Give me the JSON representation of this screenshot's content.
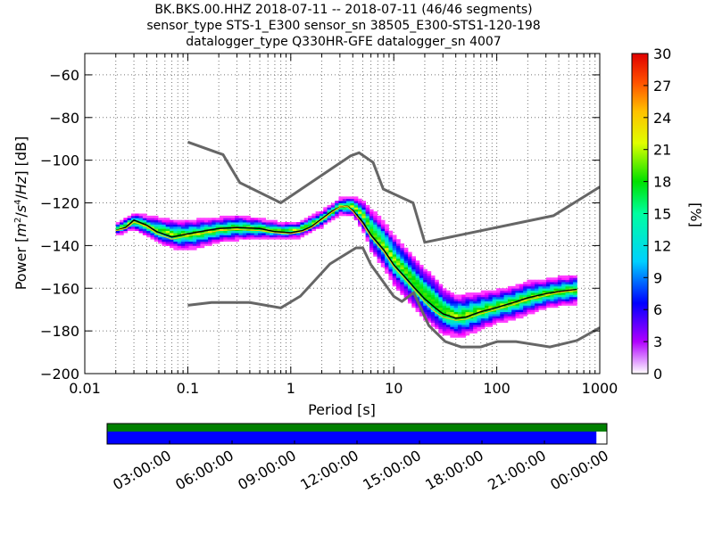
{
  "title": {
    "line1": "BK.BKS.00.HHZ   2018-07-11 -- 2018-07-11  (46/46 segments)",
    "line2": "sensor_type STS-1_E300 sensor_sn 38505_E300-STS1-120-198",
    "line3": "datalogger_type Q330HR-GFE datalogger_sn 4007"
  },
  "chart_data": {
    "type": "heatmap",
    "xlabel": "Period [s]",
    "ylabel": "Power [m²/s⁴/Hz] [dB]",
    "x_scale": "log",
    "xlim": [
      0.01,
      1000
    ],
    "ylim": [
      -200,
      -50
    ],
    "x_ticks": [
      "0.01",
      "0.1",
      "1",
      "10",
      "100",
      "1000"
    ],
    "y_ticks": [
      "−200",
      "−180",
      "−160",
      "−140",
      "−120",
      "−100",
      "−80",
      "−60"
    ],
    "grid": true,
    "colorbar": {
      "label": "[%]",
      "range": [
        0,
        30
      ],
      "ticks": [
        "0",
        "3",
        "6",
        "9",
        "12",
        "15",
        "18",
        "21",
        "24",
        "27",
        "30"
      ],
      "colormap": "pqlx"
    },
    "new_high_noise_model": {
      "period": [
        0.1,
        0.22,
        0.32,
        0.8,
        3.8,
        4.6,
        6.3,
        7.9,
        15.4,
        20,
        354.8,
        1000
      ],
      "power": [
        -91.5,
        -97.4,
        -110.5,
        -120,
        -98,
        -96.5,
        -101,
        -113.5,
        -120,
        -138.5,
        -126,
        -112.5
      ]
    },
    "new_low_noise_model": {
      "period": [
        0.1,
        0.17,
        0.4,
        0.8,
        1.24,
        2.4,
        4.3,
        5,
        6,
        10,
        12,
        15.6,
        21.9,
        31.6,
        45,
        70,
        101,
        154,
        328,
        600,
        1000
      ],
      "power": [
        -168,
        -166.7,
        -166.7,
        -169.2,
        -163.7,
        -148.6,
        -141.1,
        -141.1,
        -149,
        -163.8,
        -166.2,
        -162.1,
        -177.5,
        -185,
        -187.5,
        -187.5,
        -185,
        -185,
        -187.5,
        -184.5,
        -178.5
      ]
    },
    "mean_psd": {
      "period": [
        0.02,
        0.025,
        0.03,
        0.04,
        0.05,
        0.07,
        0.1,
        0.15,
        0.2,
        0.3,
        0.5,
        0.7,
        1,
        1.3,
        1.6,
        2,
        2.5,
        3,
        3.5,
        4,
        5,
        6,
        8,
        10,
        13,
        16,
        20,
        25,
        30,
        40,
        50,
        70,
        100,
        150,
        200,
        300,
        400,
        600
      ],
      "power": [
        -133,
        -131.5,
        -128,
        -130.5,
        -133.5,
        -136,
        -134.5,
        -133,
        -132,
        -131.5,
        -132,
        -133.5,
        -134,
        -133,
        -131,
        -127.5,
        -124,
        -122,
        -121.5,
        -123.5,
        -129,
        -135,
        -142,
        -149,
        -155,
        -160,
        -165,
        -169,
        -172,
        -174,
        -173.5,
        -171,
        -169,
        -166.5,
        -164.5,
        -162.5,
        -161.5,
        -160.5
      ]
    },
    "mode_psd": {
      "period": [
        0.02,
        0.025,
        0.03,
        0.04,
        0.05,
        0.07,
        0.1,
        0.15,
        0.2,
        0.3,
        0.5,
        0.7,
        1,
        1.3,
        1.6,
        2,
        2.5,
        3,
        3.5,
        4,
        5,
        6,
        8,
        10,
        13,
        16,
        20,
        25,
        30,
        40,
        50,
        70,
        100,
        150,
        200,
        300,
        400,
        600
      ],
      "power": [
        -133,
        -132,
        -129,
        -131,
        -134.5,
        -137,
        -135.5,
        -134,
        -133,
        -132.5,
        -133,
        -134,
        -134.5,
        -133.5,
        -131.5,
        -128,
        -124.5,
        -122,
        -121.5,
        -124,
        -130,
        -136,
        -143,
        -150,
        -156,
        -161,
        -166.5,
        -171,
        -173.5,
        -175,
        -174.5,
        -172,
        -170,
        -167.5,
        -165.5,
        -163.5,
        -162,
        -161
      ]
    },
    "histogram": {
      "period": [
        0.02,
        0.03,
        0.05,
        0.08,
        0.12,
        0.2,
        0.3,
        0.5,
        0.8,
        1.2,
        2,
        3,
        4,
        5,
        6,
        8,
        10,
        13,
        16,
        20,
        25,
        30,
        40,
        50,
        70,
        100,
        150,
        200,
        300,
        400,
        600
      ],
      "center": [
        -133,
        -129,
        -133,
        -135.5,
        -135,
        -133,
        -132,
        -132.5,
        -133.5,
        -133,
        -128,
        -122,
        -122,
        -126,
        -133,
        -140,
        -147,
        -153,
        -158,
        -163,
        -167,
        -171,
        -173.5,
        -173,
        -171,
        -169,
        -167,
        -165,
        -163,
        -162,
        -161
      ],
      "spread": [
        2,
        3,
        5,
        6,
        6,
        5,
        5,
        4,
        3,
        3,
        3,
        3,
        4,
        6,
        9,
        10,
        11,
        11,
        11,
        11,
        11,
        10,
        9,
        9,
        8,
        7,
        7,
        7,
        6,
        6,
        6
      ]
    }
  },
  "timeline": {
    "tick_labels": [
      "03:00:00",
      "06:00:00",
      "09:00:00",
      "12:00:00",
      "15:00:00",
      "18:00:00",
      "21:00:00",
      "00:00:00"
    ],
    "data_available_fraction": 1.0,
    "psd_coverage_fraction": 0.979,
    "colors": {
      "data": "#008000",
      "psd": "#0000ff"
    }
  }
}
